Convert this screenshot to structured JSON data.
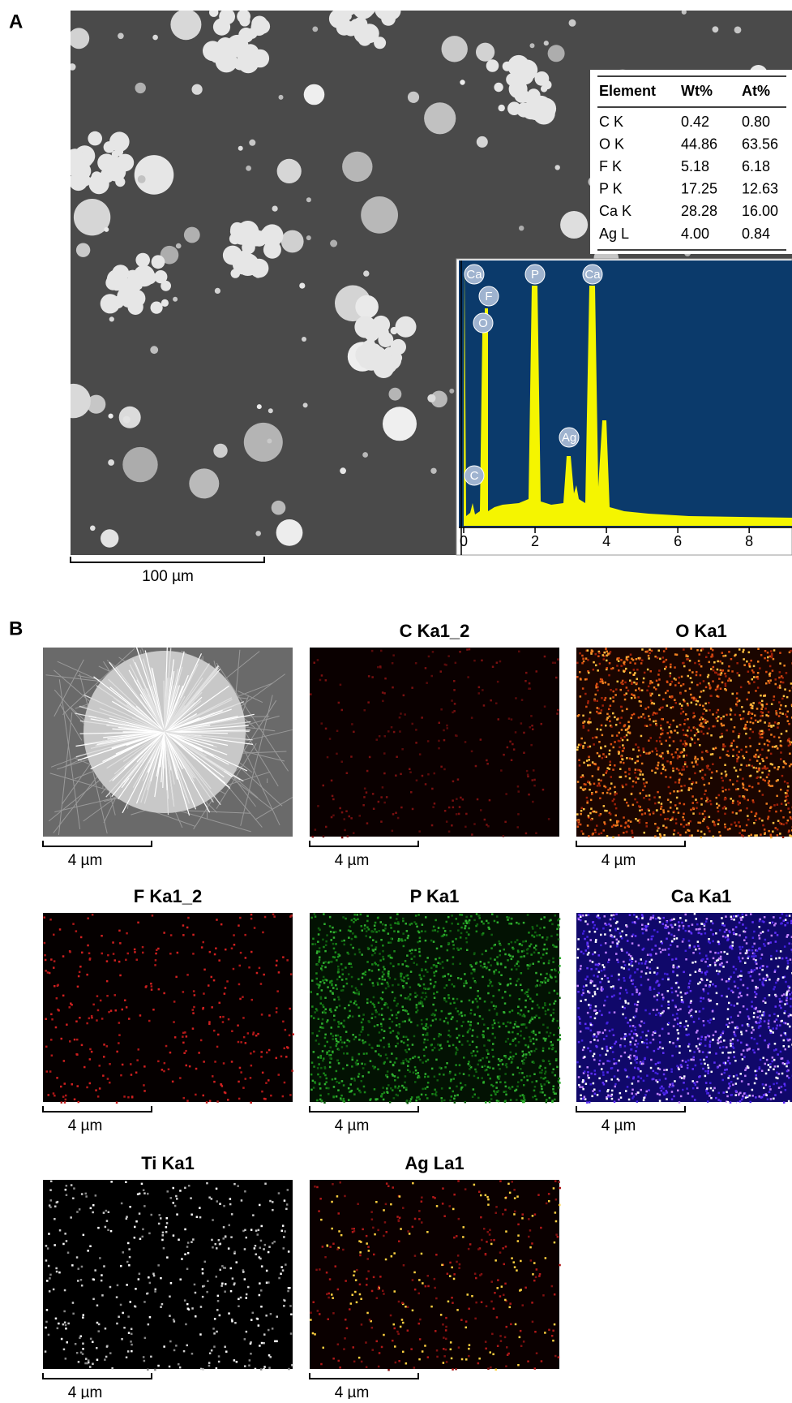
{
  "panel_a": {
    "label": "A",
    "scale_bar": "100 µm",
    "table": {
      "header": [
        "Element",
        "Wt%",
        "At%"
      ],
      "rows": [
        [
          "C K",
          "0.42",
          "0.80"
        ],
        [
          "O K",
          "44.86",
          "63.56"
        ],
        [
          "F K",
          "5.18",
          "6.18"
        ],
        [
          "P K",
          "17.25",
          "12.63"
        ],
        [
          "Ca K",
          "28.28",
          "16.00"
        ],
        [
          "Ag L",
          "4.00",
          "0.84"
        ]
      ]
    },
    "spectrum": {
      "peak_labels": [
        "Ca",
        "F",
        "O",
        "P",
        "Ca",
        "Ag",
        "C"
      ],
      "xlim": [
        0,
        9.2
      ],
      "xticks": [
        0,
        2,
        4,
        6,
        8
      ]
    }
  },
  "panel_b": {
    "label": "B",
    "maps": [
      {
        "scale_bar": "4 µm"
      },
      {
        "title": "C Ka1_2",
        "scale_bar": "4 µm"
      },
      {
        "title": "O Ka1",
        "scale_bar": "4 µm"
      },
      {
        "title": "F Ka1_2",
        "scale_bar": "4 µm"
      },
      {
        "title": "P Ka1",
        "scale_bar": "4 µm"
      },
      {
        "title": "Ca Ka1",
        "scale_bar": "4 µm"
      },
      {
        "title": "Ti Ka1",
        "scale_bar": "4 µm"
      },
      {
        "title": "Ag La1",
        "scale_bar": "4 µm"
      }
    ]
  }
}
